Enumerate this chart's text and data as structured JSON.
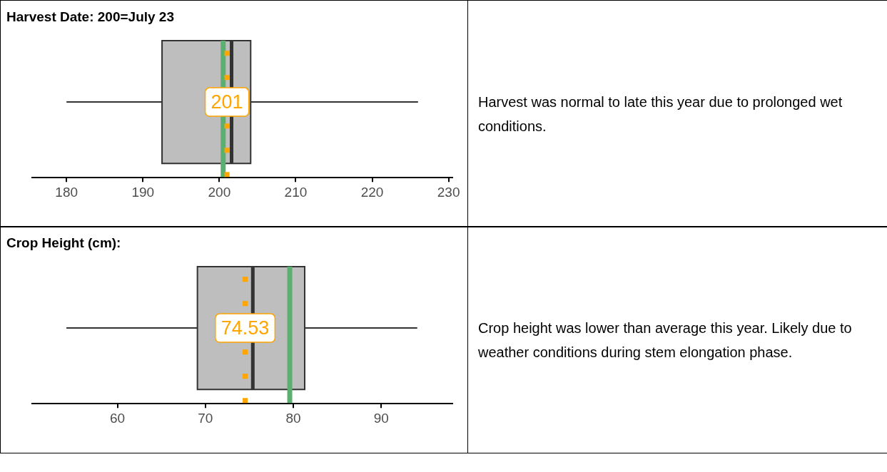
{
  "chart_data": [
    {
      "type": "box",
      "title": "Harvest Date: 200=July 23",
      "orientation": "horizontal",
      "categories": [
        null
      ],
      "color": "#bebebe",
      "tick_labels": "x",
      "boxes": [
        {
          "low": 180,
          "q1": 192.5,
          "median": 201.6,
          "q3": 204.1,
          "high": 226
        }
      ],
      "xlim": [
        175.5,
        230.5
      ],
      "xticks": [
        180,
        190,
        200,
        210,
        220,
        230
      ],
      "ref_lines": [
        {
          "axis": "x",
          "value": 200.5,
          "label": null,
          "color": "#5bb06f",
          "line_style": "solid"
        },
        {
          "axis": "x",
          "value": 201,
          "label": "201",
          "color": "#ffa500",
          "line_style": "dotted"
        }
      ]
    },
    {
      "type": "other",
      "annotations": [
        "Harvest was normal to late this year due to prolonged wet conditions."
      ]
    },
    {
      "type": "box",
      "title": "Crop Height (cm):",
      "orientation": "horizontal",
      "categories": [
        null
      ],
      "color": "#bebebe",
      "tick_labels": "x",
      "boxes": [
        {
          "low": 54.2,
          "q1": 69.1,
          "median": 75.4,
          "q3": 81.3,
          "high": 94.1
        }
      ],
      "xlim": [
        50.3,
        98.1
      ],
      "xticks": [
        60,
        70,
        80,
        90
      ],
      "ref_lines": [
        {
          "axis": "x",
          "value": 79.6,
          "label": null,
          "color": "#5bb06f",
          "line_style": "solid"
        },
        {
          "axis": "x",
          "value": 74.53,
          "label": "74.53",
          "color": "#ffa500",
          "line_style": "dotted"
        }
      ]
    },
    {
      "type": "other",
      "annotations": [
        "Crop height was lower than average this year. Likely due to weather conditions during stem elongation phase."
      ]
    }
  ]
}
